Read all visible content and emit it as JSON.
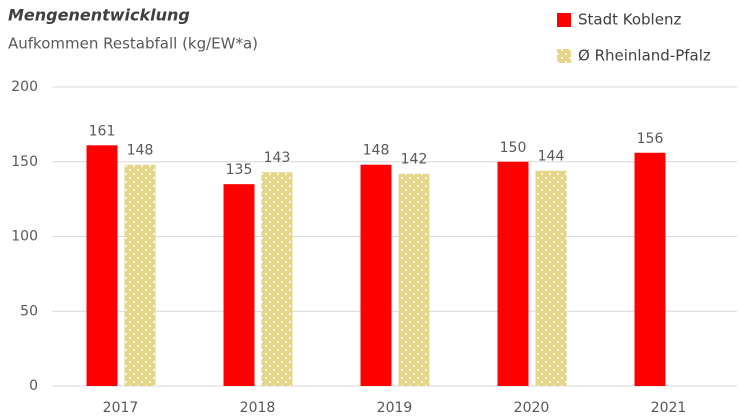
{
  "chart_data": {
    "type": "bar",
    "title": "Mengenentwicklung",
    "subtitle": "Aufkommen Restabfall (kg/EW*a)",
    "categories": [
      "2017",
      "2018",
      "2019",
      "2020",
      "2021"
    ],
    "series": [
      {
        "name": "Stadt Koblenz",
        "color": "#ff0000",
        "values": [
          161,
          135,
          148,
          150,
          156
        ]
      },
      {
        "name": "Ø Rheinland-Pfalz",
        "color": "#e6d68a",
        "values": [
          148,
          143,
          142,
          144,
          null
        ]
      }
    ],
    "ylim": [
      0,
      200
    ],
    "yticks": [
      0,
      50,
      100,
      150,
      200
    ],
    "grid": true,
    "legend": "top-right"
  }
}
